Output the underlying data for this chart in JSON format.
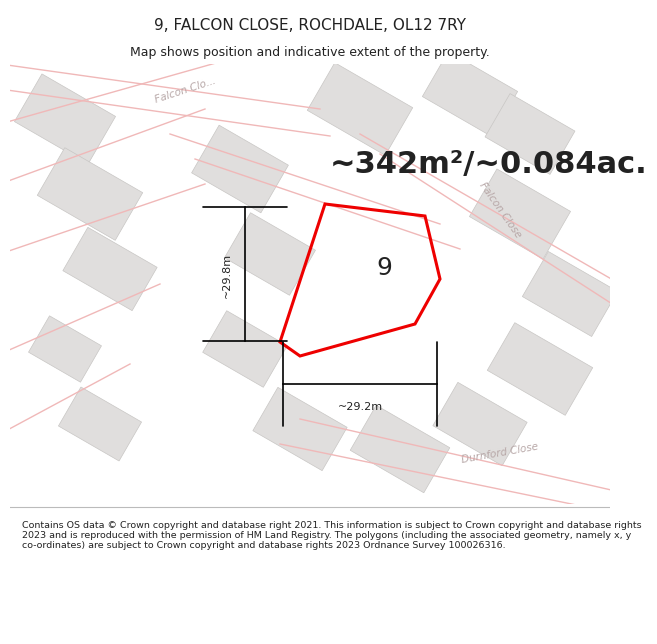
{
  "title": "9, FALCON CLOSE, ROCHDALE, OL12 7RY",
  "subtitle": "Map shows position and indicative extent of the property.",
  "area_text": "~342m²/~0.084ac.",
  "width_label": "~29.2m",
  "height_label": "~29.8m",
  "number_label": "9",
  "footer": "Contains OS data © Crown copyright and database right 2021. This information is subject to Crown copyright and database rights 2023 and is reproduced with the permission of HM Land Registry. The polygons (including the associated geometry, namely x, y co-ordinates) are subject to Crown copyright and database rights 2023 Ordnance Survey 100026316.",
  "bg_color": "#ffffff",
  "map_bg": "#f5f4f2",
  "plot_color": "#ee0000",
  "road_color": "#f0b8b8",
  "building_fill": "#e0dedd",
  "building_edge": "#c8c6c4",
  "text_color": "#222222",
  "text_color_road": "#b8a8a8",
  "title_fontsize": 11,
  "subtitle_fontsize": 9,
  "area_fontsize": 22,
  "label_fontsize": 8,
  "number_fontsize": 18,
  "footer_fontsize": 6.8,
  "road_lw": 1.0,
  "plot_lw": 2.2
}
